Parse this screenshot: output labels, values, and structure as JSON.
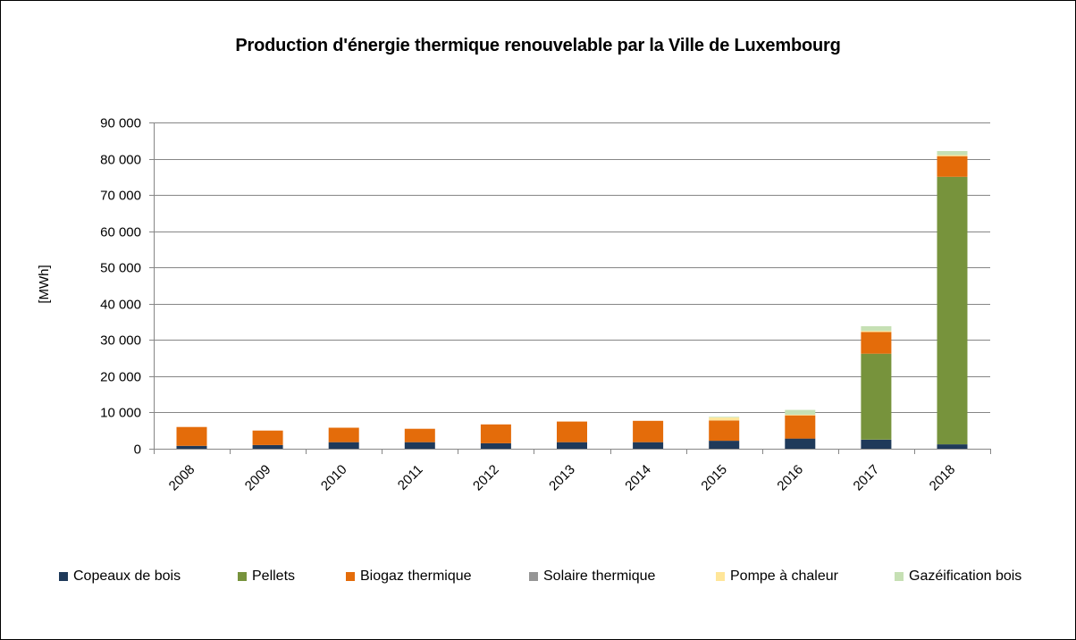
{
  "chart_data": {
    "type": "bar",
    "stacked": true,
    "title": "Production d'énergie thermique renouvelable par la Ville de Luxembourg",
    "ylabel": "[MWh]",
    "xlabel": "",
    "ylim": [
      0,
      90000
    ],
    "yticks": [
      "0",
      "10 000",
      "20 000",
      "30 000",
      "40 000",
      "50 000",
      "60 000",
      "70 000",
      "80 000",
      "90 000"
    ],
    "grid": true,
    "legend_position": "bottom",
    "categories": [
      "2008",
      "2009",
      "2010",
      "2011",
      "2012",
      "2013",
      "2014",
      "2015",
      "2016",
      "2017",
      "2018"
    ],
    "series": [
      {
        "name": "Copeaux de bois",
        "color": "#1F3A5A",
        "values": [
          800,
          1000,
          1800,
          1800,
          1500,
          1800,
          1800,
          2200,
          2800,
          2500,
          1200
        ]
      },
      {
        "name": "Pellets",
        "color": "#77933C",
        "values": [
          0,
          0,
          0,
          0,
          0,
          0,
          0,
          0,
          0,
          23700,
          73800
        ]
      },
      {
        "name": "Biogaz thermique",
        "color": "#E46C0A",
        "values": [
          5200,
          4000,
          4000,
          3700,
          5200,
          5700,
          5900,
          5600,
          6400,
          6000,
          5700
        ]
      },
      {
        "name": "Solaire thermique",
        "color": "#969696",
        "values": [
          0,
          0,
          0,
          0,
          0,
          0,
          0,
          0,
          0,
          0,
          0
        ]
      },
      {
        "name": "Pompe à chaleur",
        "color": "#FFE699",
        "values": [
          0,
          0,
          0,
          0,
          0,
          0,
          0,
          800,
          200,
          300,
          300
        ]
      },
      {
        "name": "Gazéification bois",
        "color": "#C6E0B4",
        "values": [
          0,
          0,
          0,
          0,
          0,
          0,
          0,
          200,
          1300,
          1300,
          1100
        ]
      }
    ]
  }
}
